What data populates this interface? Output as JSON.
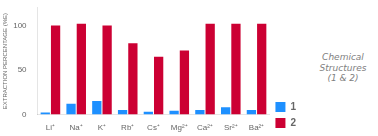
{
  "chart_data": {
    "type": "bar",
    "categories": [
      "Li⁺",
      "Na⁺",
      "K⁺",
      "Rb⁺",
      "Cs⁺",
      "Mg²⁺",
      "Ca²⁺",
      "Sr²⁺",
      "Ba²⁺"
    ],
    "series": [
      {
        "name": "1",
        "color": "#1e90ff",
        "values": [
          2,
          12,
          15,
          5,
          3,
          4,
          5,
          8,
          5
        ]
      },
      {
        "name": "2",
        "color": "#cc0033",
        "values": [
          100,
          102,
          100,
          80,
          65,
          72,
          102,
          102,
          102
        ]
      }
    ],
    "ylabel": "EXTRACTION PERCENTAGE (%E)",
    "annotations": [
      "Chemical\nStructures\n(1 & 2)"
    ],
    "ylim": [
      0,
      120
    ],
    "yticks": [
      0,
      50,
      100
    ],
    "grid": false,
    "legend": "right"
  }
}
